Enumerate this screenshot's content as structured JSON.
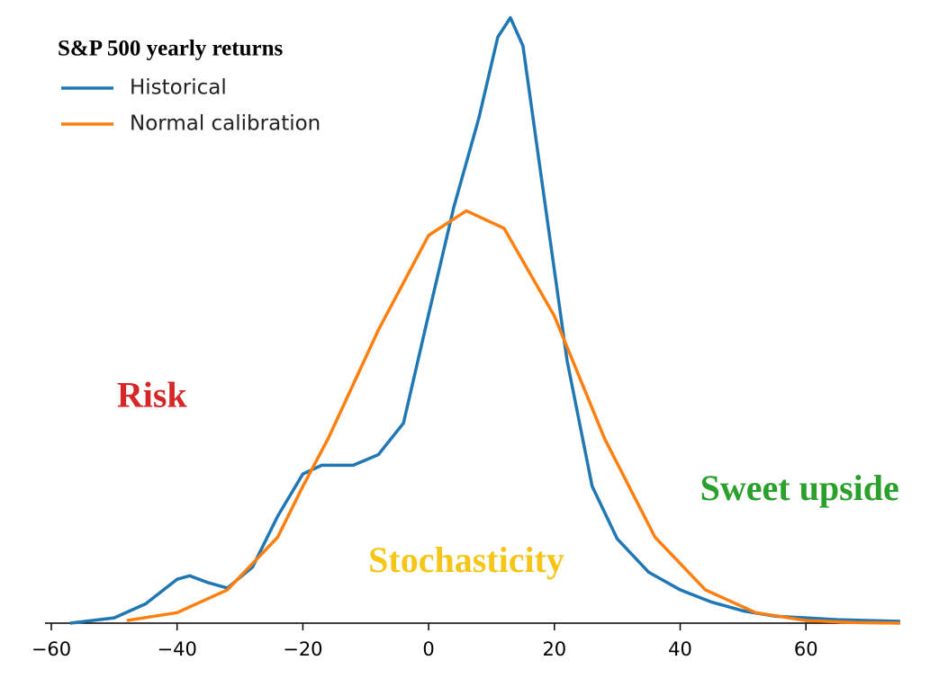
{
  "chart_data": {
    "type": "line",
    "legend_title": "S&P 500 yearly returns",
    "legend": "upper left",
    "xlim": [
      -61,
      75
    ],
    "ylim": [
      0,
      0.035
    ],
    "xticks": [
      {
        "value": -60,
        "label": "−60"
      },
      {
        "value": -40,
        "label": "−40"
      },
      {
        "value": -20,
        "label": "−20"
      },
      0,
      20,
      40,
      60
    ],
    "series": [
      {
        "name": "Historical",
        "color": "#1f77b4",
        "x": [
          -57,
          -50,
          -45,
          -40,
          -38,
          -35,
          -32,
          -28,
          -24,
          -20,
          -17,
          -12,
          -8,
          -4,
          0,
          4,
          8,
          11,
          13,
          15,
          18,
          22,
          26,
          30,
          35,
          40,
          45,
          50,
          55,
          65,
          75
        ],
        "values": [
          0,
          0.0003,
          0.0011,
          0.0025,
          0.0027,
          0.0023,
          0.002,
          0.0032,
          0.0061,
          0.0085,
          0.009,
          0.009,
          0.0096,
          0.0114,
          0.0176,
          0.0237,
          0.0288,
          0.0334,
          0.0345,
          0.0329,
          0.0252,
          0.015,
          0.0078,
          0.0048,
          0.0029,
          0.0019,
          0.0012,
          0.0007,
          0.0004,
          0.0002,
          0.0001
        ]
      },
      {
        "name": "Normal calibration",
        "color": "#ff7f0e",
        "x": [
          -48,
          -40,
          -32,
          -24,
          -20,
          -16,
          -8,
          0,
          6,
          12,
          20,
          28,
          36,
          44,
          52,
          60,
          68,
          75
        ],
        "values": [
          0.00015,
          0.0006,
          0.0019,
          0.0049,
          0.0078,
          0.0105,
          0.0167,
          0.0221,
          0.0235,
          0.0225,
          0.0175,
          0.0105,
          0.0049,
          0.0019,
          0.0006,
          0.00015,
          3e-05,
          0
        ]
      }
    ],
    "annotations": [
      {
        "text": "Risk",
        "x": -44,
        "y": 0.0128,
        "color": "#d62728"
      },
      {
        "text": "Stochasticity",
        "x": 6,
        "y": 0.0034,
        "color": "#f5c518"
      },
      {
        "text": "Sweet upside",
        "x": 59,
        "y": 0.0075,
        "color": "#2ca02c"
      }
    ]
  }
}
